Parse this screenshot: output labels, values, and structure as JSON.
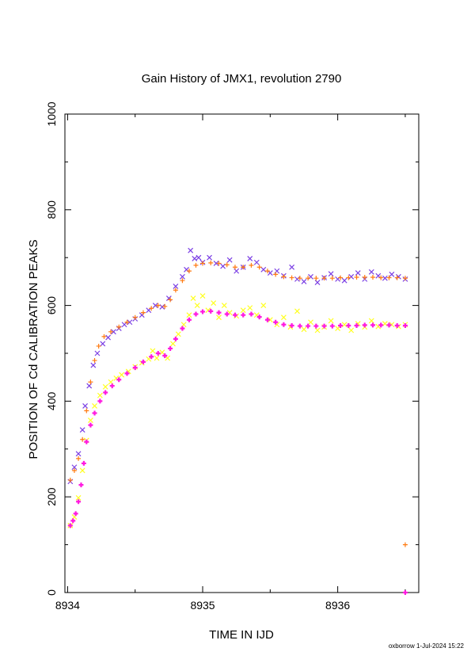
{
  "chart_data": {
    "type": "scatter",
    "title": "Gain History of JMX1, revolution 2790",
    "xlabel": "TIME IN IJD",
    "ylabel": "POSITION OF Cd CALIBRATION PEAKS",
    "xlim": [
      8933.98,
      8936.6
    ],
    "ylim": [
      0,
      1000
    ],
    "x_ticks": [
      8934,
      8935,
      8936
    ],
    "y_ticks": [
      0,
      200,
      400,
      600,
      800,
      1000
    ],
    "grid": false,
    "legend": "none",
    "series": [
      {
        "color": "#7b3fe4",
        "marker": "x",
        "points": [
          [
            8934.02,
            232
          ],
          [
            8934.05,
            262
          ],
          [
            8934.08,
            290
          ],
          [
            8934.11,
            340
          ],
          [
            8934.13,
            390
          ],
          [
            8934.16,
            432
          ],
          [
            8934.19,
            475
          ],
          [
            8934.22,
            500
          ],
          [
            8934.26,
            520
          ],
          [
            8934.3,
            533
          ],
          [
            8934.34,
            545
          ],
          [
            8934.38,
            552
          ],
          [
            8934.42,
            560
          ],
          [
            8934.46,
            565
          ],
          [
            8934.5,
            572
          ],
          [
            8934.55,
            580
          ],
          [
            8934.6,
            590
          ],
          [
            8934.65,
            600
          ],
          [
            8934.7,
            597
          ],
          [
            8934.75,
            615
          ],
          [
            8934.8,
            640
          ],
          [
            8934.85,
            660
          ],
          [
            8934.88,
            675
          ],
          [
            8934.91,
            715
          ],
          [
            8934.94,
            698
          ],
          [
            8934.97,
            700
          ],
          [
            8935.0,
            690
          ],
          [
            8935.05,
            700
          ],
          [
            8935.1,
            688
          ],
          [
            8935.15,
            682
          ],
          [
            8935.2,
            695
          ],
          [
            8935.25,
            672
          ],
          [
            8935.3,
            680
          ],
          [
            8935.35,
            698
          ],
          [
            8935.4,
            690
          ],
          [
            8935.45,
            675
          ],
          [
            8935.5,
            668
          ],
          [
            8935.55,
            672
          ],
          [
            8935.6,
            662
          ],
          [
            8935.66,
            680
          ],
          [
            8935.7,
            655
          ],
          [
            8935.75,
            650
          ],
          [
            8935.8,
            660
          ],
          [
            8935.85,
            648
          ],
          [
            8935.9,
            658
          ],
          [
            8935.95,
            666
          ],
          [
            8936.0,
            655
          ],
          [
            8936.05,
            652
          ],
          [
            8936.1,
            660
          ],
          [
            8936.15,
            668
          ],
          [
            8936.2,
            655
          ],
          [
            8936.25,
            670
          ],
          [
            8936.3,
            662
          ],
          [
            8936.35,
            657
          ],
          [
            8936.4,
            665
          ],
          [
            8936.45,
            660
          ],
          [
            8936.5,
            655
          ]
        ]
      },
      {
        "color": "#ff7a10",
        "marker": "+",
        "points": [
          [
            8934.02,
            235
          ],
          [
            8934.05,
            255
          ],
          [
            8934.08,
            280
          ],
          [
            8934.11,
            320
          ],
          [
            8934.14,
            380
          ],
          [
            8934.17,
            440
          ],
          [
            8934.2,
            485
          ],
          [
            8934.23,
            515
          ],
          [
            8934.27,
            535
          ],
          [
            8934.32,
            545
          ],
          [
            8934.38,
            555
          ],
          [
            8934.44,
            565
          ],
          [
            8934.5,
            575
          ],
          [
            8934.56,
            585
          ],
          [
            8934.62,
            594
          ],
          [
            8934.67,
            600
          ],
          [
            8934.72,
            598
          ],
          [
            8934.76,
            612
          ],
          [
            8934.8,
            632
          ],
          [
            8934.85,
            652
          ],
          [
            8934.9,
            672
          ],
          [
            8934.95,
            684
          ],
          [
            8935.0,
            688
          ],
          [
            8935.06,
            689
          ],
          [
            8935.12,
            688
          ],
          [
            8935.18,
            685
          ],
          [
            8935.24,
            680
          ],
          [
            8935.3,
            680
          ],
          [
            8935.36,
            684
          ],
          [
            8935.42,
            680
          ],
          [
            8935.48,
            672
          ],
          [
            8935.54,
            665
          ],
          [
            8935.6,
            660
          ],
          [
            8935.66,
            658
          ],
          [
            8935.72,
            657
          ],
          [
            8935.78,
            657
          ],
          [
            8935.84,
            657
          ],
          [
            8935.9,
            657
          ],
          [
            8935.96,
            657
          ],
          [
            8936.02,
            658
          ],
          [
            8936.08,
            658
          ],
          [
            8936.14,
            659
          ],
          [
            8936.2,
            659
          ],
          [
            8936.26,
            659
          ],
          [
            8936.32,
            658
          ],
          [
            8936.38,
            658
          ],
          [
            8936.44,
            658
          ],
          [
            8936.5,
            657
          ],
          [
            8936.5,
            100
          ]
        ]
      },
      {
        "color": "#ffff20",
        "marker": "x",
        "points": [
          [
            8934.02,
            140
          ],
          [
            8934.05,
            158
          ],
          [
            8934.08,
            198
          ],
          [
            8934.11,
            255
          ],
          [
            8934.14,
            318
          ],
          [
            8934.17,
            360
          ],
          [
            8934.2,
            390
          ],
          [
            8934.24,
            412
          ],
          [
            8934.28,
            430
          ],
          [
            8934.32,
            440
          ],
          [
            8934.36,
            448
          ],
          [
            8934.4,
            455
          ],
          [
            8934.45,
            462
          ],
          [
            8934.5,
            472
          ],
          [
            8934.55,
            480
          ],
          [
            8934.6,
            488
          ],
          [
            8934.63,
            505
          ],
          [
            8934.66,
            490
          ],
          [
            8934.7,
            502
          ],
          [
            8934.74,
            490
          ],
          [
            8934.78,
            520
          ],
          [
            8934.82,
            540
          ],
          [
            8934.86,
            560
          ],
          [
            8934.9,
            580
          ],
          [
            8934.93,
            615
          ],
          [
            8934.96,
            600
          ],
          [
            8935.0,
            620
          ],
          [
            8935.04,
            590
          ],
          [
            8935.08,
            605
          ],
          [
            8935.12,
            575
          ],
          [
            8935.16,
            600
          ],
          [
            8935.2,
            585
          ],
          [
            8935.25,
            578
          ],
          [
            8935.3,
            590
          ],
          [
            8935.35,
            595
          ],
          [
            8935.4,
            580
          ],
          [
            8935.45,
            600
          ],
          [
            8935.5,
            570
          ],
          [
            8935.55,
            560
          ],
          [
            8935.6,
            575
          ],
          [
            8935.65,
            555
          ],
          [
            8935.7,
            588
          ],
          [
            8935.75,
            550
          ],
          [
            8935.8,
            565
          ],
          [
            8935.85,
            548
          ],
          [
            8935.9,
            555
          ],
          [
            8935.95,
            568
          ],
          [
            8936.0,
            552
          ],
          [
            8936.05,
            560
          ],
          [
            8936.1,
            548
          ],
          [
            8936.15,
            562
          ],
          [
            8936.2,
            555
          ],
          [
            8936.25,
            568
          ],
          [
            8936.3,
            556
          ],
          [
            8936.35,
            562
          ],
          [
            8936.4,
            560
          ],
          [
            8936.45,
            556
          ],
          [
            8936.5,
            560
          ]
        ]
      },
      {
        "color": "#ff1ae0",
        "marker": "+",
        "points": [
          [
            8934.02,
            140
          ],
          [
            8934.04,
            150
          ],
          [
            8934.06,
            165
          ],
          [
            8934.08,
            190
          ],
          [
            8934.1,
            225
          ],
          [
            8934.12,
            270
          ],
          [
            8934.14,
            315
          ],
          [
            8934.17,
            350
          ],
          [
            8934.2,
            375
          ],
          [
            8934.24,
            400
          ],
          [
            8934.28,
            418
          ],
          [
            8934.33,
            432
          ],
          [
            8934.38,
            445
          ],
          [
            8934.44,
            458
          ],
          [
            8934.5,
            470
          ],
          [
            8934.56,
            482
          ],
          [
            8934.62,
            493
          ],
          [
            8934.67,
            500
          ],
          [
            8934.72,
            495
          ],
          [
            8934.76,
            510
          ],
          [
            8934.8,
            530
          ],
          [
            8934.85,
            552
          ],
          [
            8934.9,
            570
          ],
          [
            8934.95,
            582
          ],
          [
            8935.0,
            587
          ],
          [
            8935.06,
            588
          ],
          [
            8935.12,
            585
          ],
          [
            8935.18,
            582
          ],
          [
            8935.24,
            580
          ],
          [
            8935.3,
            580
          ],
          [
            8935.36,
            582
          ],
          [
            8935.42,
            576
          ],
          [
            8935.48,
            570
          ],
          [
            8935.54,
            565
          ],
          [
            8935.6,
            560
          ],
          [
            8935.66,
            558
          ],
          [
            8935.72,
            557
          ],
          [
            8935.78,
            557
          ],
          [
            8935.84,
            557
          ],
          [
            8935.9,
            557
          ],
          [
            8935.96,
            557
          ],
          [
            8936.02,
            558
          ],
          [
            8936.08,
            558
          ],
          [
            8936.14,
            558
          ],
          [
            8936.2,
            559
          ],
          [
            8936.26,
            559
          ],
          [
            8936.32,
            559
          ],
          [
            8936.38,
            559
          ],
          [
            8936.44,
            558
          ],
          [
            8936.5,
            558
          ],
          [
            8936.5,
            0
          ]
        ]
      }
    ]
  },
  "footer": "oxborrow  1-Jul-2024 15:22"
}
